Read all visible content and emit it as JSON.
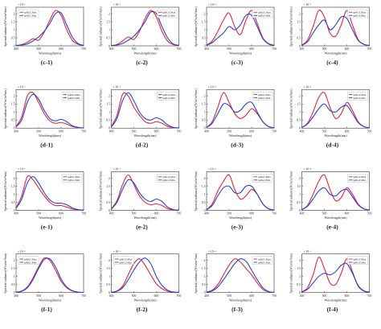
{
  "colors": {
    "ipRGCMax": "#e8243c",
    "ipRGCMin": "#2b3fd8"
  },
  "common": {
    "ylabel": "Spectral radiance(W/sr/m²/nm)",
    "xlabel": "Wavelength(nm)",
    "xlim": [
      400,
      700
    ],
    "xticks": [
      "400",
      "500",
      "600",
      "700"
    ]
  },
  "chart_data": [
    {
      "id": "c-1",
      "label": "(c-1)",
      "type": "line",
      "title": "",
      "ylabel": "Spectral radiance(W/sr/m²/nm)",
      "xlabel": "Wavelength(nm)",
      "legend": "top-left",
      "y_exponent": "× 10⁻³",
      "ylim": [
        0,
        2.4
      ],
      "yticks": [
        0,
        0.5,
        1,
        1.5,
        2
      ],
      "x": [
        400,
        425,
        450,
        475,
        500,
        525,
        550,
        575,
        600,
        625,
        650,
        675,
        700
      ],
      "series": [
        {
          "name": "ipRGCMax",
          "values": [
            0.02,
            0.08,
            0.22,
            0.45,
            0.35,
            0.85,
            1.6,
            2.2,
            1.9,
            1.0,
            0.35,
            0.1,
            0.02
          ]
        },
        {
          "name": "ipRGCMin",
          "values": [
            0.02,
            0.05,
            0.12,
            0.3,
            0.55,
            0.9,
            1.4,
            2.0,
            2.05,
            1.3,
            0.55,
            0.15,
            0.03
          ]
        }
      ]
    },
    {
      "id": "c-2",
      "label": "(c-2)",
      "type": "line",
      "title": "",
      "ylabel": "Spectral radiance(W/sr/m²/nm)",
      "xlabel": "Wavelength(nm)",
      "legend": "top-right",
      "y_exponent": "× 10⁻³",
      "ylim": [
        0,
        2.4
      ],
      "yticks": [
        0,
        0.5,
        1,
        1.5,
        2
      ],
      "x": [
        400,
        425,
        450,
        475,
        500,
        525,
        550,
        575,
        600,
        625,
        650,
        675,
        700
      ],
      "series": [
        {
          "name": "ipRGCMax",
          "values": [
            0.02,
            0.08,
            0.3,
            0.55,
            0.4,
            0.9,
            1.7,
            2.2,
            1.8,
            0.9,
            0.3,
            0.08,
            0.02
          ]
        },
        {
          "name": "ipRGCMin",
          "values": [
            0.02,
            0.05,
            0.15,
            0.35,
            0.6,
            1.0,
            1.5,
            2.1,
            2.0,
            1.2,
            0.5,
            0.12,
            0.03
          ]
        }
      ]
    },
    {
      "id": "c-3",
      "label": "(c-3)",
      "type": "line",
      "title": "",
      "ylabel": "Spectral radiance(W/sr/m²/nm)",
      "xlabel": "Wavelength(nm)",
      "legend": "top-right",
      "y_exponent": "× 10⁻⁴",
      "ylim": [
        0,
        2.4
      ],
      "yticks": [
        0,
        0.5,
        1,
        1.5,
        2
      ],
      "x": [
        400,
        425,
        450,
        475,
        500,
        525,
        550,
        575,
        600,
        625,
        650,
        675,
        700
      ],
      "series": [
        {
          "name": "ipRGCMax",
          "values": [
            0.05,
            0.3,
            0.9,
            1.6,
            2.05,
            1.2,
            0.7,
            1.6,
            2.2,
            1.4,
            0.5,
            0.15,
            0.03
          ]
        },
        {
          "name": "ipRGCMin",
          "values": [
            0.04,
            0.2,
            0.5,
            0.8,
            1.2,
            1.0,
            1.3,
            1.9,
            1.9,
            1.2,
            0.45,
            0.12,
            0.03
          ]
        }
      ]
    },
    {
      "id": "c-4",
      "label": "(c-4)",
      "type": "line",
      "title": "",
      "ylabel": "Spectral radiance(W/sr/m²/nm)",
      "xlabel": "Wavelength(nm)",
      "legend": "top-right",
      "y_exponent": "× 10⁻³",
      "ylim": [
        0,
        2.4
      ],
      "yticks": [
        0,
        0.5,
        1,
        1.5,
        2
      ],
      "x": [
        400,
        425,
        450,
        475,
        500,
        525,
        550,
        575,
        600,
        625,
        650,
        675,
        700
      ],
      "series": [
        {
          "name": "ipRGCMax",
          "values": [
            0.05,
            0.35,
            1.2,
            2.2,
            1.8,
            0.8,
            0.6,
            1.3,
            2.2,
            1.3,
            0.4,
            0.1,
            0.02
          ]
        },
        {
          "name": "ipRGCMin",
          "values": [
            0.04,
            0.25,
            0.8,
            1.3,
            1.6,
            1.0,
            1.3,
            1.8,
            1.7,
            1.0,
            0.35,
            0.1,
            0.02
          ]
        }
      ]
    },
    {
      "id": "d-1",
      "label": "(d-1)",
      "type": "line",
      "title": "",
      "ylabel": "Spectral radiance(W/sr/m²/nm)",
      "xlabel": "Wavelength(nm)",
      "legend": "top-right",
      "y_exponent": "× 10⁻³",
      "ylim": [
        0,
        2.4
      ],
      "yticks": [
        0,
        0.5,
        1,
        1.5,
        2
      ],
      "x": [
        400,
        425,
        450,
        475,
        500,
        525,
        550,
        575,
        600,
        625,
        650,
        675,
        700
      ],
      "series": [
        {
          "name": "ipRGCMax",
          "values": [
            0.1,
            0.7,
            2.0,
            2.2,
            1.6,
            0.9,
            0.45,
            0.3,
            0.35,
            0.25,
            0.1,
            0.03,
            0.01
          ]
        },
        {
          "name": "ipRGCMin",
          "values": [
            0.08,
            0.5,
            1.6,
            2.1,
            1.8,
            1.1,
            0.6,
            0.45,
            0.55,
            0.4,
            0.15,
            0.05,
            0.01
          ]
        }
      ]
    },
    {
      "id": "d-2",
      "label": "(d-2)",
      "type": "line",
      "title": "",
      "ylabel": "Spectral radiance(W/sr/m²/nm)",
      "xlabel": "Wavelength(nm)",
      "legend": "top-right",
      "y_exponent": "× 10⁻³",
      "ylim": [
        0,
        2.4
      ],
      "yticks": [
        0,
        0.5,
        1,
        1.5,
        2
      ],
      "x": [
        400,
        425,
        450,
        475,
        500,
        525,
        550,
        575,
        600,
        625,
        650,
        675,
        700
      ],
      "series": [
        {
          "name": "ipRGCMax",
          "values": [
            0.1,
            0.8,
            2.1,
            2.0,
            1.3,
            0.8,
            0.4,
            0.3,
            0.4,
            0.3,
            0.1,
            0.03,
            0.01
          ]
        },
        {
          "name": "ipRGCMin",
          "values": [
            0.08,
            0.6,
            1.7,
            2.2,
            1.7,
            1.0,
            0.6,
            0.5,
            0.65,
            0.5,
            0.2,
            0.05,
            0.01
          ]
        }
      ]
    },
    {
      "id": "d-3",
      "label": "(d-3)",
      "type": "line",
      "title": "",
      "ylabel": "Spectral radiance(W/sr/m²/nm)",
      "xlabel": "Wavelength(nm)",
      "legend": "top-right",
      "y_exponent": "× 10⁻⁴",
      "ylim": [
        0,
        2.4
      ],
      "yticks": [
        0,
        0.5,
        1,
        1.5,
        2
      ],
      "x": [
        400,
        425,
        450,
        475,
        500,
        525,
        550,
        575,
        600,
        625,
        650,
        675,
        700
      ],
      "series": [
        {
          "name": "ipRGCMax",
          "values": [
            0.05,
            0.4,
            1.3,
            2.2,
            1.6,
            0.9,
            0.6,
            0.8,
            1.2,
            0.9,
            0.4,
            0.1,
            0.02
          ]
        },
        {
          "name": "ipRGCMin",
          "values": [
            0.04,
            0.3,
            0.9,
            1.5,
            1.4,
            1.0,
            1.1,
            1.5,
            1.6,
            1.0,
            0.4,
            0.1,
            0.02
          ]
        }
      ]
    },
    {
      "id": "d-4",
      "label": "(d-4)",
      "type": "line",
      "title": "",
      "ylabel": "Spectral radiance(W/sr/m²/nm)",
      "xlabel": "Wavelength(nm)",
      "legend": "top-right",
      "y_exponent": "× 10⁻⁴",
      "ylim": [
        0,
        2.4
      ],
      "yticks": [
        0,
        0.5,
        1,
        1.5,
        2
      ],
      "x": [
        400,
        425,
        450,
        475,
        500,
        525,
        550,
        575,
        600,
        625,
        650,
        675,
        700
      ],
      "series": [
        {
          "name": "ipRGCMax",
          "values": [
            0.05,
            0.3,
            1.0,
            1.9,
            2.2,
            1.3,
            0.6,
            0.9,
            1.6,
            1.1,
            0.4,
            0.1,
            0.02
          ]
        },
        {
          "name": "ipRGCMin",
          "values": [
            0.04,
            0.25,
            0.7,
            1.2,
            1.5,
            1.1,
            1.0,
            1.3,
            1.4,
            0.9,
            0.35,
            0.1,
            0.02
          ]
        }
      ]
    },
    {
      "id": "e-1",
      "label": "(e-1)",
      "type": "line",
      "title": "",
      "ylabel": "Spectral radiance(W/sr/m²/nm)",
      "xlabel": "Wavelength(nm)",
      "legend": "top-right",
      "y_exponent": "× 10⁻³",
      "ylim": [
        0,
        2.4
      ],
      "yticks": [
        0,
        0.5,
        1,
        1.5,
        2
      ],
      "x": [
        400,
        425,
        450,
        475,
        500,
        525,
        550,
        575,
        600,
        625,
        650,
        675,
        700
      ],
      "series": [
        {
          "name": "ipRGCMax",
          "values": [
            0.15,
            0.9,
            2.1,
            1.9,
            1.4,
            0.9,
            0.5,
            0.3,
            0.3,
            0.2,
            0.08,
            0.03,
            0.01
          ]
        },
        {
          "name": "ipRGCMin",
          "values": [
            0.12,
            0.7,
            1.7,
            2.1,
            1.7,
            1.1,
            0.65,
            0.45,
            0.45,
            0.35,
            0.15,
            0.05,
            0.01
          ]
        }
      ]
    },
    {
      "id": "e-2",
      "label": "(e-2)",
      "type": "line",
      "title": "",
      "ylabel": "Spectral radiance(W/sr/m²/nm)",
      "xlabel": "Wavelength(nm)",
      "legend": "top-right",
      "y_exponent": "× 10⁻³",
      "ylim": [
        0,
        2.4
      ],
      "yticks": [
        0,
        0.5,
        1,
        1.5,
        2
      ],
      "x": [
        400,
        425,
        450,
        475,
        500,
        525,
        550,
        575,
        600,
        625,
        650,
        675,
        700
      ],
      "series": [
        {
          "name": "ipRGCMax",
          "values": [
            0.1,
            0.6,
            1.6,
            2.2,
            1.6,
            0.9,
            0.5,
            0.35,
            0.4,
            0.3,
            0.1,
            0.03,
            0.01
          ]
        },
        {
          "name": "ipRGCMin",
          "values": [
            0.08,
            0.5,
            1.3,
            1.9,
            1.7,
            1.1,
            0.7,
            0.55,
            0.7,
            0.55,
            0.2,
            0.05,
            0.01
          ]
        }
      ]
    },
    {
      "id": "e-3",
      "label": "(e-3)",
      "type": "line",
      "title": "",
      "ylabel": "Spectral radiance(W/sr/m²/nm)",
      "xlabel": "Wavelength(nm)",
      "legend": "top-right",
      "y_exponent": "× 10⁻⁴",
      "ylim": [
        0,
        2.4
      ],
      "yticks": [
        0,
        0.5,
        1,
        1.5,
        2
      ],
      "x": [
        400,
        425,
        450,
        475,
        500,
        525,
        550,
        575,
        600,
        625,
        650,
        675,
        700
      ],
      "series": [
        {
          "name": "ipRGCMax",
          "values": [
            0.05,
            0.4,
            1.2,
            1.8,
            2.2,
            1.3,
            0.7,
            0.9,
            1.3,
            1.0,
            0.4,
            0.1,
            0.02
          ]
        },
        {
          "name": "ipRGCMin",
          "values": [
            0.04,
            0.3,
            0.9,
            1.4,
            1.5,
            1.1,
            1.1,
            1.5,
            1.5,
            1.0,
            0.4,
            0.1,
            0.02
          ]
        }
      ]
    },
    {
      "id": "e-4",
      "label": "(e-4)",
      "type": "line",
      "title": "",
      "ylabel": "Spectral radiance(W/sr/m²/nm)",
      "xlabel": "Wavelength(nm)",
      "legend": "top-right",
      "y_exponent": "× 10⁻⁴",
      "ylim": [
        0,
        2.4
      ],
      "yticks": [
        0,
        0.5,
        1,
        1.5,
        2
      ],
      "x": [
        400,
        425,
        450,
        475,
        500,
        525,
        550,
        575,
        600,
        625,
        650,
        675,
        700
      ],
      "series": [
        {
          "name": "ipRGCMax",
          "values": [
            0.05,
            0.3,
            1.0,
            1.8,
            2.2,
            1.3,
            0.6,
            0.8,
            1.4,
            1.0,
            0.4,
            0.1,
            0.02
          ]
        },
        {
          "name": "ipRGCMin",
          "values": [
            0.04,
            0.25,
            0.7,
            1.2,
            1.4,
            1.0,
            0.9,
            1.2,
            1.3,
            0.85,
            0.35,
            0.1,
            0.02
          ]
        }
      ]
    },
    {
      "id": "f-1",
      "label": "(f-1)",
      "type": "line",
      "title": "",
      "ylabel": "Spectral radiance(W/sr/m²/nm)",
      "xlabel": "Wavelength(nm)",
      "legend": "top-left",
      "y_exponent": "× 10⁻³",
      "ylim": [
        0,
        2.4
      ],
      "yticks": [
        0,
        0.5,
        1,
        1.5,
        2
      ],
      "x": [
        400,
        425,
        450,
        475,
        500,
        525,
        550,
        575,
        600,
        625,
        650,
        675,
        700
      ],
      "series": [
        {
          "name": "ipRGCMax",
          "values": [
            0.02,
            0.1,
            0.35,
            0.9,
            1.6,
            2.15,
            2.0,
            1.4,
            0.7,
            0.3,
            0.1,
            0.03,
            0.01
          ]
        },
        {
          "name": "ipRGCMin",
          "values": [
            0.02,
            0.08,
            0.3,
            0.8,
            1.5,
            2.05,
            2.1,
            1.6,
            0.85,
            0.35,
            0.12,
            0.03,
            0.01
          ]
        }
      ]
    },
    {
      "id": "f-2",
      "label": "(f-2)",
      "type": "line",
      "title": "",
      "ylabel": "Spectral radiance(W/sr/m²/nm)",
      "xlabel": "Wavelength(nm)",
      "legend": "top-left",
      "y_exponent": "× 10⁻³",
      "ylim": [
        0,
        2.4
      ],
      "yticks": [
        0,
        0.5,
        1,
        1.5,
        2
      ],
      "x": [
        400,
        425,
        450,
        475,
        500,
        525,
        550,
        575,
        600,
        625,
        650,
        675,
        700
      ],
      "series": [
        {
          "name": "ipRGCMax",
          "values": [
            0.02,
            0.1,
            0.4,
            1.1,
            1.8,
            2.1,
            1.7,
            1.1,
            0.55,
            0.25,
            0.08,
            0.02,
            0.01
          ]
        },
        {
          "name": "ipRGCMin",
          "values": [
            0.02,
            0.08,
            0.3,
            0.8,
            1.4,
            1.9,
            2.15,
            1.8,
            1.0,
            0.45,
            0.15,
            0.04,
            0.01
          ]
        }
      ]
    },
    {
      "id": "f-3",
      "label": "(f-3)",
      "type": "line",
      "title": "",
      "ylabel": "Spectral radiance(W/sr/m²/nm)",
      "xlabel": "Wavelength(nm)",
      "legend": "top-right",
      "y_exponent": "× 10⁻⁴",
      "ylim": [
        0,
        2.4
      ],
      "yticks": [
        0,
        0.5,
        1,
        1.5,
        2
      ],
      "x": [
        400,
        425,
        450,
        475,
        500,
        525,
        550,
        575,
        600,
        625,
        650,
        675,
        700
      ],
      "series": [
        {
          "name": "ipRGCMax",
          "values": [
            0.03,
            0.15,
            0.5,
            1.1,
            1.7,
            2.1,
            1.9,
            1.5,
            1.1,
            0.6,
            0.2,
            0.05,
            0.01
          ]
        },
        {
          "name": "ipRGCMin",
          "values": [
            0.02,
            0.1,
            0.35,
            0.8,
            1.3,
            1.8,
            2.1,
            1.95,
            1.4,
            0.8,
            0.3,
            0.07,
            0.01
          ]
        }
      ]
    },
    {
      "id": "f-4",
      "label": "(f-4)",
      "type": "line",
      "title": "",
      "ylabel": "Spectral radiance(W/sr/m²/nm)",
      "xlabel": "Wavelength(nm)",
      "legend": "top-right",
      "y_exponent": "× 10⁻³",
      "ylim": [
        0,
        2.4
      ],
      "yticks": [
        0,
        0.5,
        1,
        1.5,
        2
      ],
      "x": [
        400,
        425,
        450,
        475,
        500,
        525,
        550,
        575,
        600,
        625,
        650,
        675,
        700
      ],
      "series": [
        {
          "name": "ipRGCMax",
          "values": [
            0.05,
            0.3,
            1.1,
            2.2,
            1.5,
            0.6,
            0.5,
            1.2,
            2.1,
            1.3,
            0.4,
            0.1,
            0.02
          ]
        },
        {
          "name": "ipRGCMin",
          "values": [
            0.04,
            0.2,
            0.6,
            1.0,
            1.2,
            1.1,
            1.3,
            1.7,
            1.8,
            1.2,
            0.45,
            0.12,
            0.03
          ]
        }
      ]
    }
  ]
}
